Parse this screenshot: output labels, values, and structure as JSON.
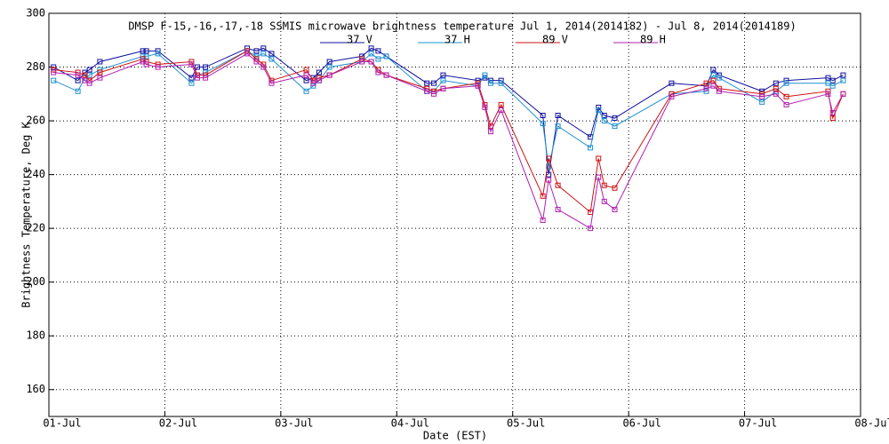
{
  "chart_data": {
    "type": "line",
    "title": "DMSP F-15,-16,-17,-18 SSMIS microwave brightness temperature Jul  1, 2014(2014182) - Jul  8, 2014(2014189)",
    "x_label": "Date (EST)",
    "y_label": "Brightness Temperature, Deg K",
    "x": [
      0.04,
      0.25,
      0.31,
      0.35,
      0.44,
      0.81,
      0.84,
      0.94,
      1.23,
      1.28,
      1.35,
      1.71,
      1.79,
      1.85,
      1.92,
      2.22,
      2.28,
      2.33,
      2.42,
      2.7,
      2.78,
      2.84,
      2.91,
      3.26,
      3.32,
      3.4,
      3.7,
      3.76,
      3.81,
      3.9,
      4.26,
      4.31,
      4.39,
      4.67,
      4.74,
      4.79,
      4.88,
      5.37,
      5.67,
      5.73,
      5.78,
      6.15,
      6.27,
      6.36,
      6.72,
      6.76,
      6.85
    ],
    "series": [
      {
        "name": "37 V",
        "color": "#1010a0",
        "values": [
          280,
          275,
          278,
          279,
          282,
          286,
          286,
          286,
          276,
          280,
          280,
          287,
          286,
          287,
          285,
          275,
          276,
          278,
          282,
          284,
          287,
          286,
          284,
          274,
          274,
          277,
          275,
          276,
          275,
          275,
          262,
          240,
          262,
          254,
          265,
          262,
          261,
          274,
          273,
          279,
          277,
          271,
          274,
          275,
          276,
          275,
          277
        ]
      },
      {
        "name": "37 H",
        "color": "#2090d0",
        "values": [
          275,
          271,
          276,
          277,
          279,
          284,
          284,
          285,
          274,
          277,
          278,
          286,
          284,
          285,
          283,
          271,
          273,
          275,
          280,
          282,
          285,
          283,
          284,
          271,
          271,
          275,
          273,
          277,
          274,
          274,
          259,
          243,
          258,
          250,
          264,
          260,
          258,
          270,
          271,
          277,
          276,
          267,
          271,
          274,
          274,
          273,
          275
        ]
      },
      {
        "name": "89 V",
        "color": "#d01010",
        "values": [
          279,
          278,
          277,
          275,
          278,
          283,
          282,
          281,
          282,
          277,
          277,
          286,
          283,
          281,
          275,
          279,
          275,
          276,
          277,
          283,
          282,
          279,
          277,
          272,
          271,
          272,
          274,
          266,
          258,
          266,
          232,
          246,
          236,
          226,
          246,
          236,
          235,
          270,
          274,
          275,
          272,
          270,
          272,
          269,
          271,
          261,
          270
        ]
      },
      {
        "name": "89 H",
        "color": "#b020b0",
        "values": [
          278,
          277,
          275,
          274,
          276,
          282,
          281,
          280,
          281,
          276,
          276,
          285,
          282,
          280,
          274,
          277,
          274,
          275,
          277,
          282,
          282,
          278,
          277,
          271,
          270,
          272,
          273,
          265,
          256,
          264,
          223,
          238,
          227,
          220,
          239,
          230,
          227,
          269,
          272,
          273,
          271,
          269,
          270,
          266,
          270,
          263,
          270
        ]
      }
    ],
    "xlim": [
      0,
      7
    ],
    "xticks": [
      {
        "value": 0,
        "label": "01-Jul"
      },
      {
        "value": 1,
        "label": "02-Jul"
      },
      {
        "value": 2,
        "label": "03-Jul"
      },
      {
        "value": 3,
        "label": "04-Jul"
      },
      {
        "value": 4,
        "label": "05-Jul"
      },
      {
        "value": 5,
        "label": "06-Jul"
      },
      {
        "value": 6,
        "label": "07-Jul"
      },
      {
        "value": 7,
        "label": "08-Jul"
      }
    ],
    "ylim": [
      150,
      300
    ],
    "yticks": [
      160,
      180,
      200,
      220,
      240,
      260,
      280,
      300
    ],
    "grid": true
  }
}
